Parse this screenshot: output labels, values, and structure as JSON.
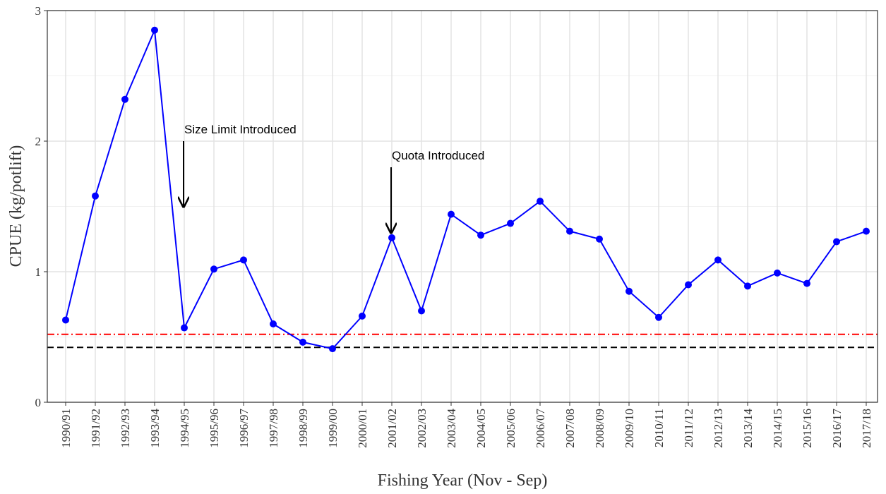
{
  "chart_data": {
    "type": "line",
    "x_label": "Fishing Year (Nov - Sep)",
    "y_label": "CPUE (kg/potlift)",
    "categories": [
      "1990/91",
      "1991/92",
      "1992/93",
      "1993/94",
      "1994/95",
      "1995/96",
      "1996/97",
      "1997/98",
      "1998/99",
      "1999/00",
      "2000/01",
      "2001/02",
      "2002/03",
      "2003/04",
      "2004/05",
      "2005/06",
      "2006/07",
      "2007/08",
      "2008/09",
      "2009/10",
      "2010/11",
      "2011/12",
      "2012/13",
      "2013/14",
      "2014/15",
      "2015/16",
      "2016/17",
      "2017/18"
    ],
    "series": [
      {
        "color": "#0000ff",
        "values": [
          0.63,
          1.58,
          2.32,
          2.85,
          0.57,
          1.02,
          1.09,
          0.6,
          0.46,
          0.41,
          0.66,
          1.26,
          0.7,
          1.44,
          1.28,
          1.37,
          1.54,
          1.31,
          1.25,
          0.85,
          0.65,
          0.9,
          1.09,
          0.89,
          0.99,
          0.91,
          1.23,
          1.31
        ]
      }
    ],
    "reference_lines": [
      {
        "value": 0.52,
        "color": "#ff0000",
        "style": "dashdot"
      },
      {
        "value": 0.42,
        "color": "#000000",
        "style": "dashed"
      }
    ],
    "annotations": [
      {
        "text": "Size Limit Introduced"
      },
      {
        "text": "Quota Introduced"
      }
    ],
    "ylim": [
      0,
      3
    ],
    "yticks": [
      0,
      1,
      2,
      3
    ],
    "grid": true
  }
}
